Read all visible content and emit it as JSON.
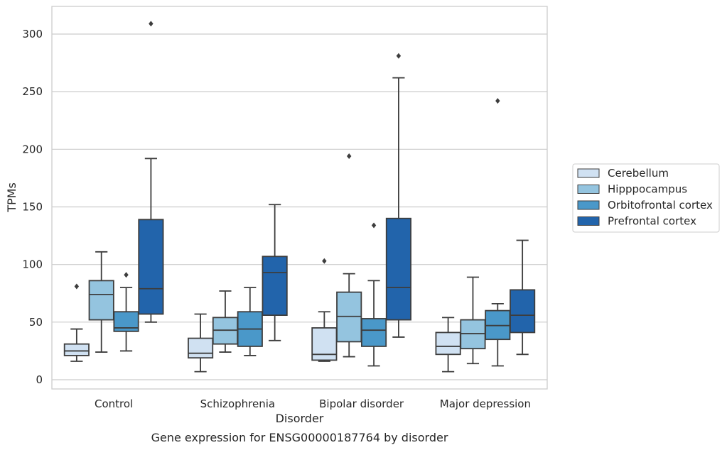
{
  "chart_data": {
    "type": "box",
    "caption": "Gene expression for ENSG00000187764 by disorder",
    "xlabel": "Disorder",
    "ylabel": "TPMs",
    "ylim": [
      -8,
      324
    ],
    "yticks": [
      0,
      50,
      100,
      150,
      200,
      250,
      300
    ],
    "grid": "horizontal",
    "legend_placement": "right, outside plot",
    "categories": [
      "Control",
      "Schizophrenia",
      "Bipolar disorder",
      "Major depression"
    ],
    "series": [
      {
        "name": "Cerebellum",
        "color": "#d0e1f2",
        "boxes": [
          {
            "whisker_low": 16,
            "q1": 21,
            "median": 25,
            "q3": 31,
            "whisker_high": 44,
            "outliers": [
              81
            ]
          },
          {
            "whisker_low": 7,
            "q1": 19,
            "median": 23,
            "q3": 36,
            "whisker_high": 57,
            "outliers": []
          },
          {
            "whisker_low": 16,
            "q1": 17,
            "median": 22,
            "q3": 45,
            "whisker_high": 59,
            "outliers": [
              103
            ]
          },
          {
            "whisker_low": 7,
            "q1": 22,
            "median": 29,
            "q3": 41,
            "whisker_high": 54,
            "outliers": []
          }
        ]
      },
      {
        "name": "Hipppocampus",
        "color": "#94c4df",
        "boxes": [
          {
            "whisker_low": 24,
            "q1": 52,
            "median": 74,
            "q3": 86,
            "whisker_high": 111,
            "outliers": []
          },
          {
            "whisker_low": 24,
            "q1": 31,
            "median": 43,
            "q3": 54,
            "whisker_high": 77,
            "outliers": []
          },
          {
            "whisker_low": 20,
            "q1": 33,
            "median": 55,
            "q3": 76,
            "whisker_high": 92,
            "outliers": [
              194
            ]
          },
          {
            "whisker_low": 14,
            "q1": 27,
            "median": 40,
            "q3": 52,
            "whisker_high": 89,
            "outliers": []
          }
        ]
      },
      {
        "name": "Orbitofrontal cortex",
        "color": "#4a98c9",
        "boxes": [
          {
            "whisker_low": 25,
            "q1": 42,
            "median": 45,
            "q3": 59,
            "whisker_high": 80,
            "outliers": [
              91
            ]
          },
          {
            "whisker_low": 21,
            "q1": 29,
            "median": 44,
            "q3": 59,
            "whisker_high": 80,
            "outliers": []
          },
          {
            "whisker_low": 12,
            "q1": 29,
            "median": 43,
            "q3": 53,
            "whisker_high": 86,
            "outliers": [
              134
            ]
          },
          {
            "whisker_low": 12,
            "q1": 35,
            "median": 47,
            "q3": 60,
            "whisker_high": 66,
            "outliers": [
              242
            ]
          }
        ]
      },
      {
        "name": "Prefrontal cortex",
        "color": "#2264ab",
        "boxes": [
          {
            "whisker_low": 50,
            "q1": 57,
            "median": 79,
            "q3": 139,
            "whisker_high": 192,
            "outliers": [
              309
            ]
          },
          {
            "whisker_low": 34,
            "q1": 56,
            "median": 93,
            "q3": 107,
            "whisker_high": 152,
            "outliers": []
          },
          {
            "whisker_low": 37,
            "q1": 52,
            "median": 80,
            "q3": 140,
            "whisker_high": 262,
            "outliers": [
              281
            ]
          },
          {
            "whisker_low": 22,
            "q1": 41,
            "median": 56,
            "q3": 78,
            "whisker_high": 121,
            "outliers": []
          }
        ]
      }
    ]
  }
}
